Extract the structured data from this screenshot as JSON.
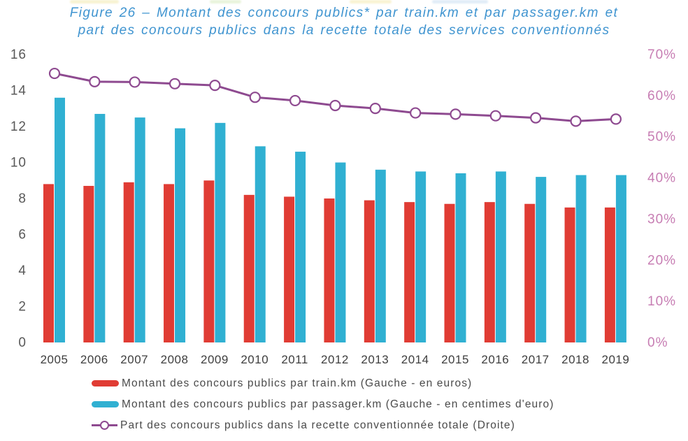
{
  "figure": {
    "title_line1": "Figure 26 – Montant des concours publics* par train.km et par passager.km et",
    "title_line2": "part des concours publics dans la recette totale des services conventionnés"
  },
  "chart_data": {
    "type": "bar",
    "subtype": "combo-bar-line",
    "title": "Figure 26 – Montant des concours publics par train.km et par passager.km et part des concours publics dans la recette totale des services conventionnés",
    "categories": [
      "2005",
      "2006",
      "2007",
      "2008",
      "2009",
      "2010",
      "2011",
      "2012",
      "2013",
      "2014",
      "2015",
      "2016",
      "2017",
      "2018",
      "2019"
    ],
    "series": [
      {
        "name": "Montant des concours publics par train.km (Gauche - en euros)",
        "type": "bar",
        "axis": "left",
        "color": "#e03c34",
        "values": [
          8.8,
          8.7,
          8.9,
          8.8,
          9.0,
          8.2,
          8.1,
          8.0,
          7.9,
          7.8,
          7.7,
          7.8,
          7.7,
          7.5,
          7.5
        ]
      },
      {
        "name": "Montant des concours publics par passager.km (Gauche - en centimes d'euro)",
        "type": "bar",
        "axis": "left",
        "color": "#30b0d2",
        "values": [
          13.6,
          12.7,
          12.5,
          11.9,
          12.2,
          10.9,
          10.6,
          10.0,
          9.6,
          9.5,
          9.4,
          9.5,
          9.2,
          9.3,
          9.3
        ]
      },
      {
        "name": "Part des concours publics dans la recette conventionnée totale (Droite)",
        "type": "line",
        "axis": "right",
        "color": "#8e4a90",
        "marker": "open-circle",
        "values_percent": [
          65.4,
          63.4,
          63.3,
          62.9,
          62.5,
          59.6,
          58.8,
          57.6,
          56.9,
          55.8,
          55.5,
          55.1,
          54.6,
          53.8,
          54.3
        ]
      }
    ],
    "left_axis": {
      "ticks": [
        0,
        2,
        4,
        6,
        8,
        10,
        12,
        14,
        16
      ],
      "range": [
        0,
        16
      ]
    },
    "right_axis": {
      "ticks": [
        "0%",
        "10%",
        "20%",
        "30%",
        "40%",
        "50%",
        "60%",
        "70%"
      ],
      "range_percent": [
        0,
        70
      ]
    },
    "grid": false,
    "legend_position": "bottom"
  },
  "colors": {
    "title_blue": "#3f94d0",
    "bar_red": "#e03c34",
    "bar_blue": "#30b0d2",
    "line_purple": "#8e4a90",
    "right_axis_pink": "#c77db3",
    "left_axis_gray": "#595959"
  }
}
